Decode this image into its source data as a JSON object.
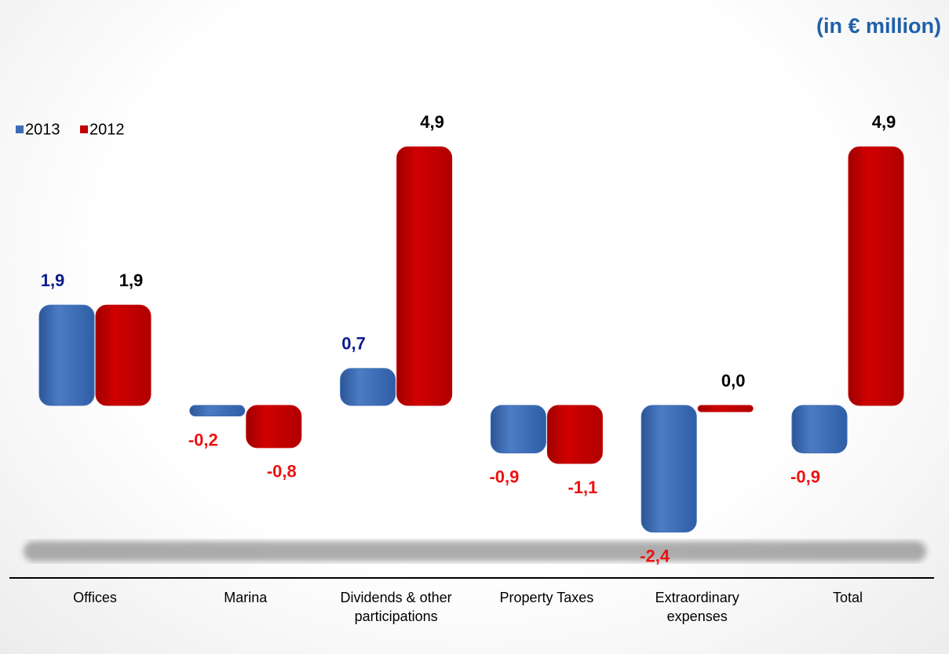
{
  "chart_data": {
    "type": "bar",
    "subtitle": "(in € million)",
    "categories": [
      "Offices",
      "Marina",
      "Dividends & other participations",
      "Property Taxes",
      "Extraordinary expenses",
      "Total"
    ],
    "series": [
      {
        "name": "2013",
        "color": "#3d6db5",
        "label_color": "#0a1a8c",
        "values": [
          1.9,
          -0.2,
          0.7,
          -0.9,
          -2.4,
          -0.9
        ],
        "value_labels": [
          "1,9",
          "-0,2",
          "0,7",
          "-0,9",
          "-2,4",
          "-0,9"
        ]
      },
      {
        "name": "2012",
        "color": "#c00000",
        "label_color": "#000000",
        "values": [
          1.9,
          -0.8,
          4.9,
          -1.1,
          0.0,
          4.9
        ],
        "value_labels": [
          "1,9",
          "-0,8",
          "4,9",
          "-1,1",
          "0,0",
          "4,9"
        ]
      }
    ],
    "negative_label_color": "#ee1111",
    "legend": "top-left"
  }
}
